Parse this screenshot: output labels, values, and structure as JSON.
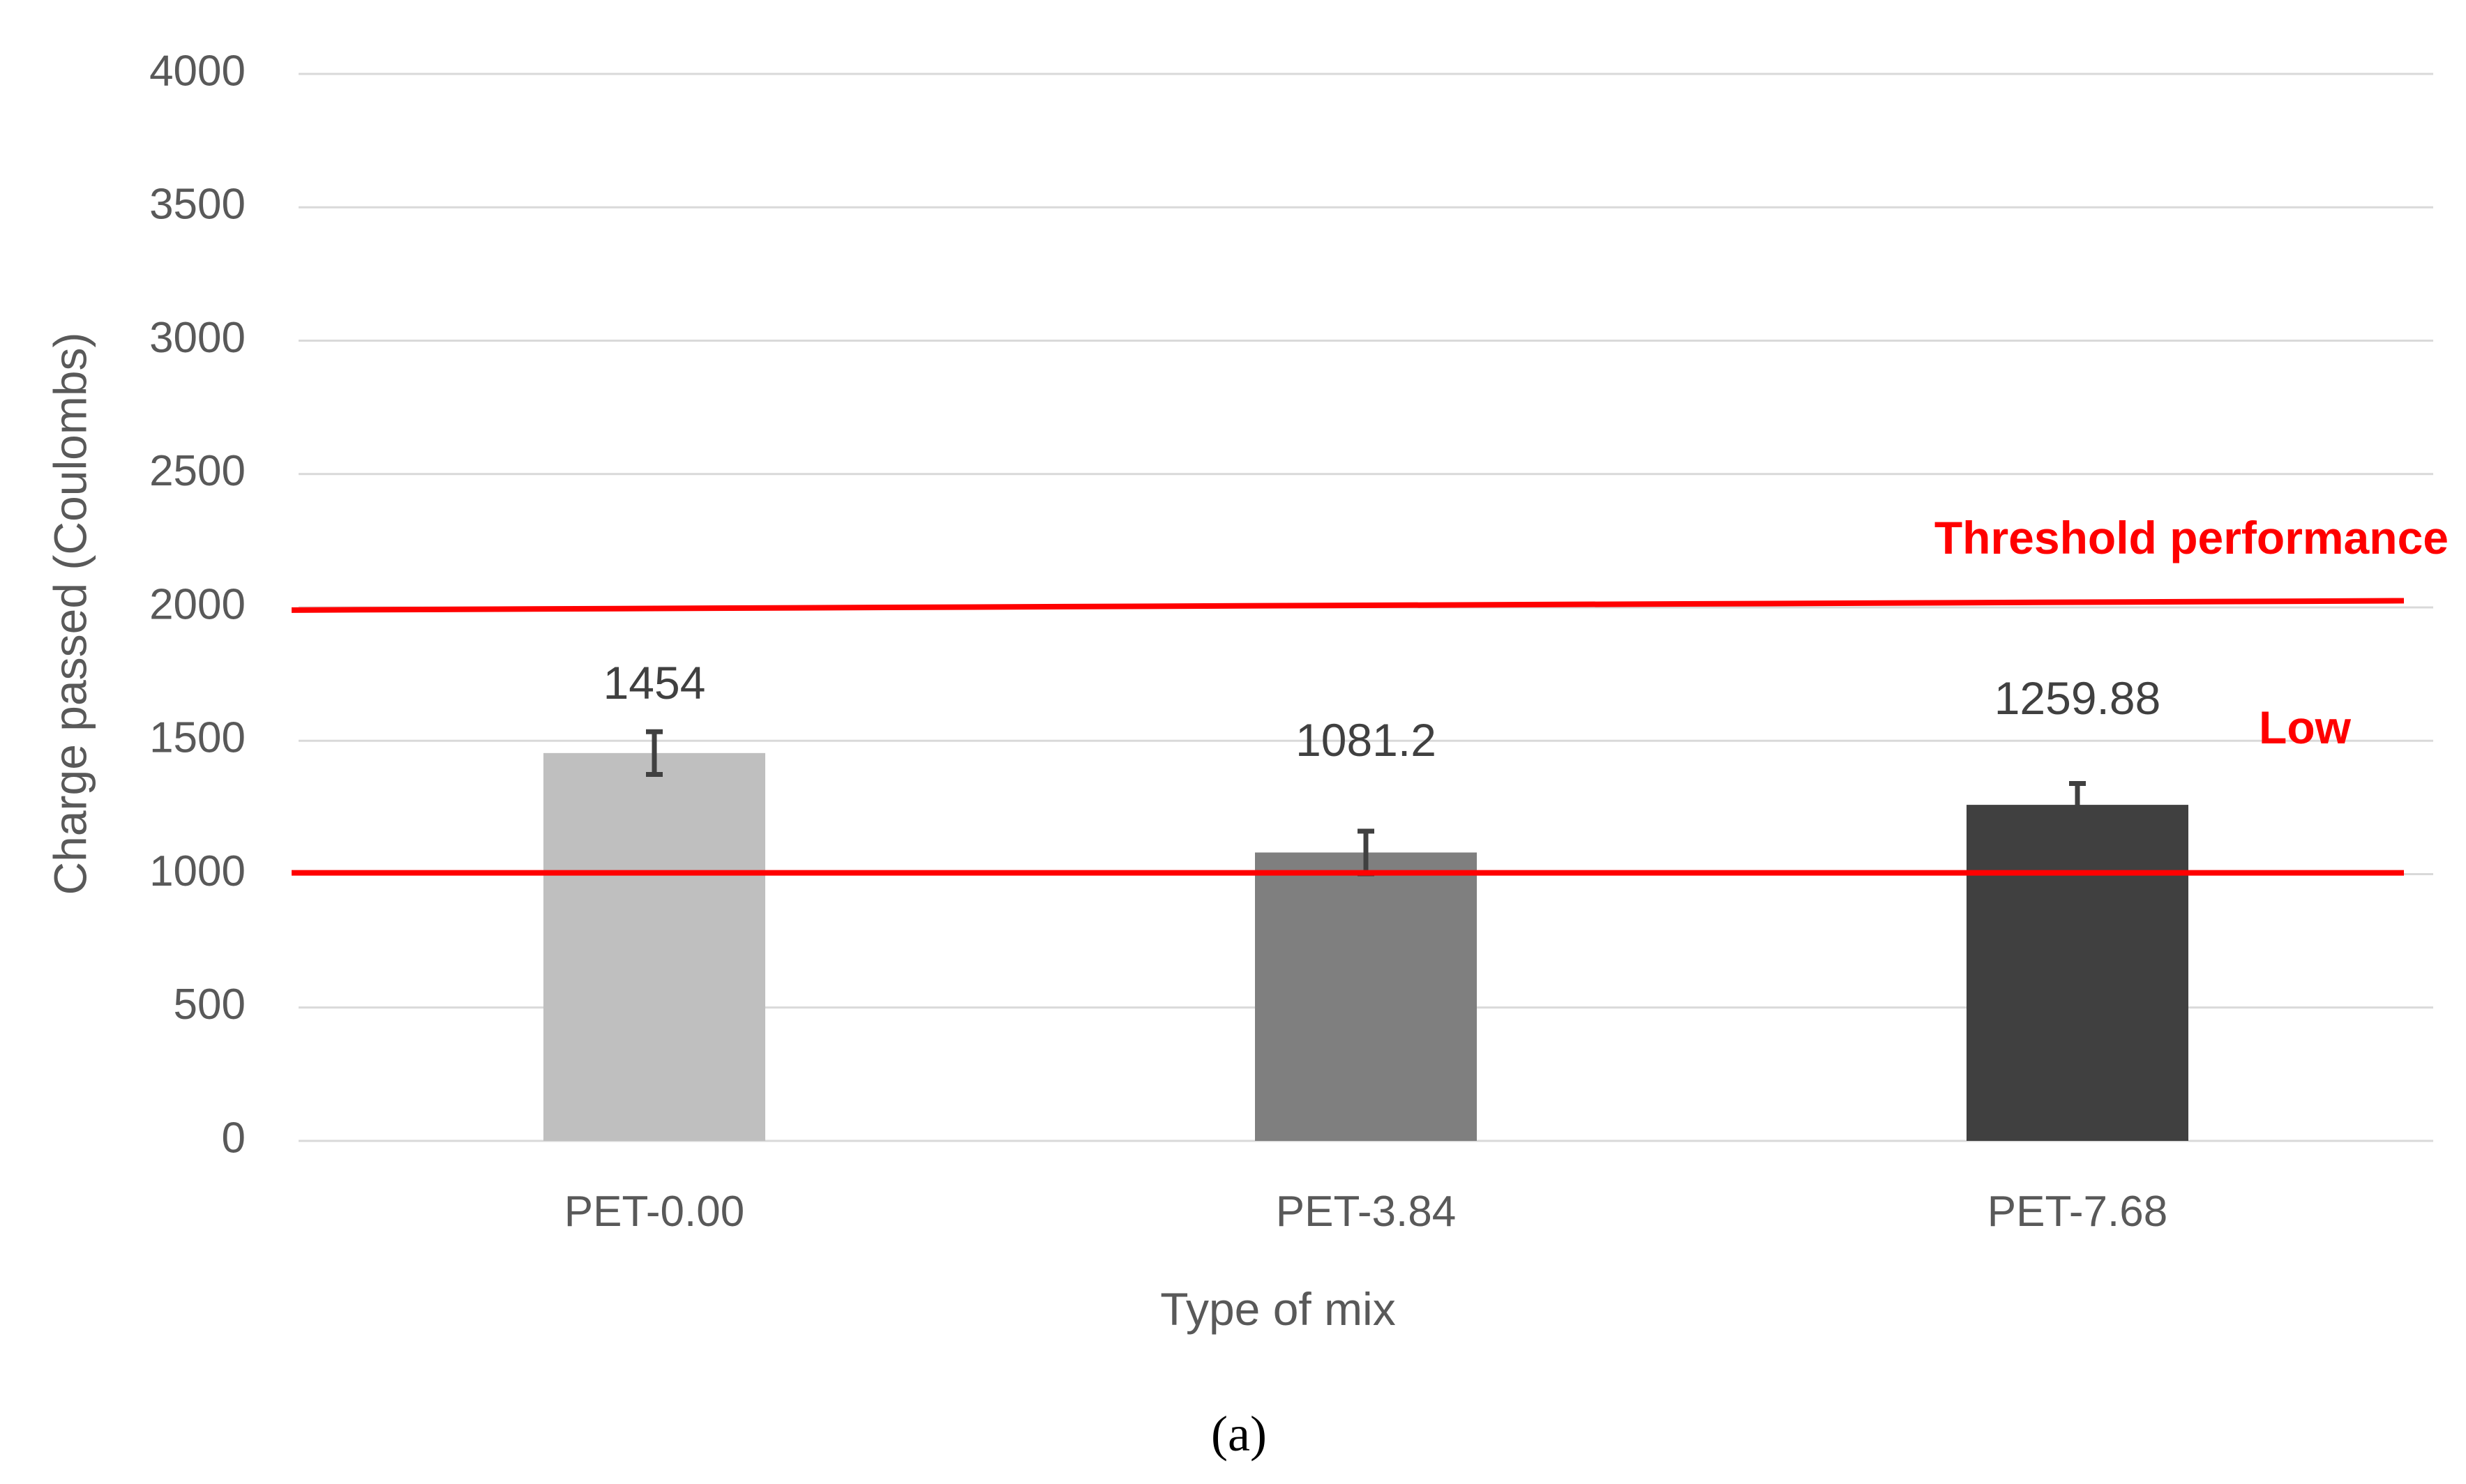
{
  "chart_data": {
    "type": "bar",
    "title": "",
    "xlabel": "Type of mix",
    "ylabel": "Charge passed (Coulombs)",
    "ylim": [
      0,
      4000
    ],
    "yticks": [
      0,
      500,
      1000,
      1500,
      2000,
      2500,
      3000,
      3500,
      4000
    ],
    "grid": true,
    "legend": "none",
    "categories": [
      "PET-0.00",
      "PET-3.84",
      "PET-7.68"
    ],
    "values": [
      1454,
      1081.2,
      1259.88
    ],
    "data_labels": [
      "1454",
      "1081.2",
      "1259.88"
    ],
    "error_bars": [
      80,
      80,
      80
    ],
    "bar_colors": [
      "#bfbfbf",
      "#7f7f7f",
      "#404040"
    ],
    "reference_lines": [
      {
        "y_start": 1990,
        "y_end": 2025,
        "label": "Threshold performance",
        "color": "#ff0000"
      },
      {
        "y_start": 1005,
        "y_end": 1005,
        "label": "Low",
        "color": "#ff0000"
      }
    ],
    "panel_label": "(a)"
  }
}
